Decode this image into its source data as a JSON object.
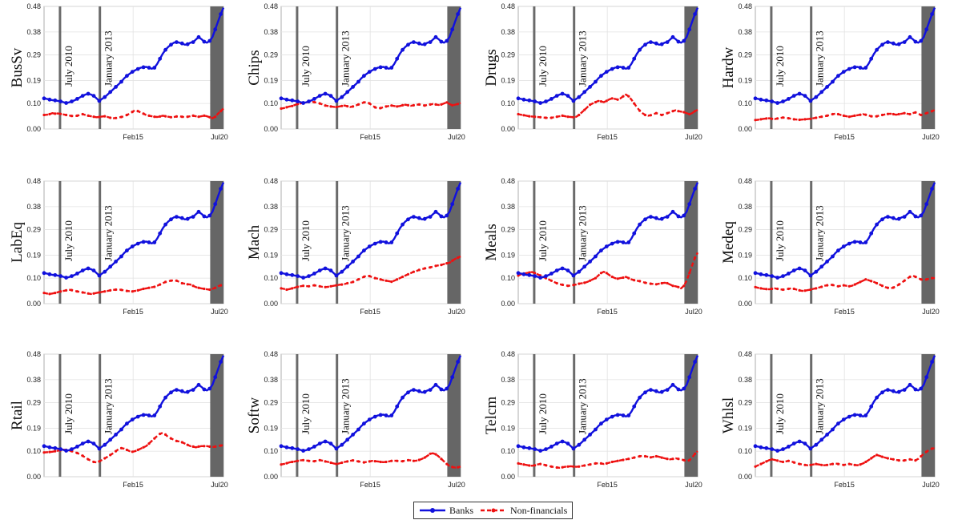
{
  "panels": [
    {
      "label": "BusSv",
      "nonfin": [
        0.055,
        0.056,
        0.058,
        0.062,
        0.06,
        0.061,
        0.059,
        0.057,
        0.055,
        0.053,
        0.051,
        0.05,
        0.052,
        0.055,
        0.058,
        0.055,
        0.052,
        0.05,
        0.048,
        0.046,
        0.047,
        0.049,
        0.05,
        0.047,
        0.044,
        0.042,
        0.043,
        0.045,
        0.047,
        0.05,
        0.055,
        0.06,
        0.067,
        0.074,
        0.07,
        0.065,
        0.06,
        0.055,
        0.052,
        0.05,
        0.048,
        0.047,
        0.049,
        0.052,
        0.05,
        0.048,
        0.046,
        0.047,
        0.049,
        0.05,
        0.048,
        0.046,
        0.048,
        0.05,
        0.052,
        0.05,
        0.048,
        0.05,
        0.052,
        0.05,
        0.046,
        0.042,
        0.048,
        0.06,
        0.07,
        0.08
      ]
    },
    {
      "label": "Chips",
      "nonfin": [
        0.08,
        0.082,
        0.085,
        0.088,
        0.09,
        0.094,
        0.098,
        0.1,
        0.102,
        0.104,
        0.106,
        0.107,
        0.105,
        0.103,
        0.1,
        0.096,
        0.092,
        0.09,
        0.088,
        0.087,
        0.086,
        0.088,
        0.09,
        0.092,
        0.089,
        0.086,
        0.088,
        0.092,
        0.096,
        0.1,
        0.104,
        0.106,
        0.1,
        0.092,
        0.085,
        0.08,
        0.082,
        0.085,
        0.088,
        0.09,
        0.092,
        0.09,
        0.088,
        0.09,
        0.093,
        0.095,
        0.093,
        0.091,
        0.093,
        0.095,
        0.096,
        0.094,
        0.092,
        0.094,
        0.096,
        0.098,
        0.096,
        0.094,
        0.096,
        0.1,
        0.104,
        0.098,
        0.093,
        0.095,
        0.098,
        0.102
      ]
    },
    {
      "label": "Drugs",
      "nonfin": [
        0.058,
        0.056,
        0.054,
        0.052,
        0.05,
        0.049,
        0.048,
        0.047,
        0.046,
        0.045,
        0.044,
        0.043,
        0.044,
        0.046,
        0.048,
        0.05,
        0.052,
        0.05,
        0.048,
        0.047,
        0.046,
        0.048,
        0.055,
        0.065,
        0.075,
        0.085,
        0.095,
        0.1,
        0.105,
        0.11,
        0.108,
        0.105,
        0.11,
        0.116,
        0.12,
        0.118,
        0.115,
        0.12,
        0.128,
        0.135,
        0.128,
        0.115,
        0.1,
        0.085,
        0.072,
        0.062,
        0.055,
        0.052,
        0.054,
        0.058,
        0.062,
        0.058,
        0.055,
        0.058,
        0.062,
        0.066,
        0.07,
        0.073,
        0.07,
        0.068,
        0.066,
        0.062,
        0.058,
        0.062,
        0.07,
        0.075
      ]
    },
    {
      "label": "Hardw",
      "nonfin": [
        0.035,
        0.036,
        0.038,
        0.04,
        0.041,
        0.042,
        0.04,
        0.039,
        0.041,
        0.043,
        0.045,
        0.044,
        0.042,
        0.04,
        0.038,
        0.037,
        0.036,
        0.037,
        0.038,
        0.039,
        0.04,
        0.042,
        0.044,
        0.046,
        0.048,
        0.05,
        0.052,
        0.055,
        0.058,
        0.06,
        0.058,
        0.055,
        0.052,
        0.05,
        0.048,
        0.05,
        0.052,
        0.054,
        0.056,
        0.058,
        0.056,
        0.053,
        0.05,
        0.048,
        0.05,
        0.053,
        0.055,
        0.057,
        0.059,
        0.06,
        0.058,
        0.056,
        0.058,
        0.06,
        0.062,
        0.06,
        0.058,
        0.062,
        0.065,
        0.06,
        0.055,
        0.058,
        0.062,
        0.066,
        0.07,
        0.074
      ]
    },
    {
      "label": "LabEq",
      "nonfin": [
        0.042,
        0.04,
        0.038,
        0.04,
        0.042,
        0.045,
        0.048,
        0.05,
        0.052,
        0.055,
        0.053,
        0.05,
        0.048,
        0.046,
        0.044,
        0.042,
        0.04,
        0.038,
        0.04,
        0.042,
        0.044,
        0.046,
        0.048,
        0.05,
        0.052,
        0.054,
        0.055,
        0.056,
        0.054,
        0.052,
        0.05,
        0.049,
        0.048,
        0.05,
        0.052,
        0.055,
        0.058,
        0.06,
        0.062,
        0.064,
        0.066,
        0.07,
        0.075,
        0.08,
        0.085,
        0.088,
        0.09,
        0.092,
        0.09,
        0.085,
        0.08,
        0.078,
        0.076,
        0.075,
        0.07,
        0.065,
        0.062,
        0.06,
        0.058,
        0.056,
        0.055,
        0.058,
        0.062,
        0.068,
        0.072,
        0.075
      ]
    },
    {
      "label": "Mach",
      "nonfin": [
        0.06,
        0.058,
        0.055,
        0.057,
        0.06,
        0.063,
        0.066,
        0.068,
        0.07,
        0.069,
        0.068,
        0.07,
        0.072,
        0.07,
        0.068,
        0.066,
        0.065,
        0.066,
        0.068,
        0.07,
        0.072,
        0.074,
        0.075,
        0.077,
        0.08,
        0.082,
        0.085,
        0.09,
        0.095,
        0.1,
        0.105,
        0.11,
        0.108,
        0.104,
        0.1,
        0.098,
        0.095,
        0.092,
        0.09,
        0.088,
        0.086,
        0.09,
        0.095,
        0.1,
        0.105,
        0.11,
        0.115,
        0.12,
        0.125,
        0.128,
        0.132,
        0.135,
        0.138,
        0.14,
        0.142,
        0.145,
        0.148,
        0.15,
        0.152,
        0.155,
        0.158,
        0.16,
        0.168,
        0.175,
        0.18,
        0.185
      ]
    },
    {
      "label": "Meals",
      "nonfin": [
        0.11,
        0.115,
        0.118,
        0.12,
        0.122,
        0.124,
        0.12,
        0.115,
        0.11,
        0.105,
        0.1,
        0.095,
        0.09,
        0.085,
        0.08,
        0.076,
        0.074,
        0.072,
        0.07,
        0.071,
        0.073,
        0.075,
        0.078,
        0.08,
        0.082,
        0.085,
        0.09,
        0.095,
        0.1,
        0.11,
        0.12,
        0.125,
        0.12,
        0.112,
        0.105,
        0.1,
        0.098,
        0.1,
        0.102,
        0.105,
        0.1,
        0.095,
        0.092,
        0.09,
        0.088,
        0.085,
        0.082,
        0.08,
        0.078,
        0.077,
        0.076,
        0.078,
        0.08,
        0.082,
        0.08,
        0.075,
        0.07,
        0.068,
        0.065,
        0.06,
        0.07,
        0.09,
        0.12,
        0.15,
        0.18,
        0.2
      ]
    },
    {
      "label": "Medeq",
      "nonfin": [
        0.065,
        0.062,
        0.06,
        0.058,
        0.057,
        0.056,
        0.058,
        0.06,
        0.058,
        0.056,
        0.055,
        0.056,
        0.058,
        0.06,
        0.058,
        0.055,
        0.052,
        0.05,
        0.051,
        0.053,
        0.055,
        0.058,
        0.06,
        0.063,
        0.066,
        0.07,
        0.072,
        0.075,
        0.073,
        0.07,
        0.068,
        0.07,
        0.072,
        0.07,
        0.068,
        0.07,
        0.075,
        0.08,
        0.085,
        0.09,
        0.095,
        0.092,
        0.088,
        0.085,
        0.08,
        0.075,
        0.07,
        0.065,
        0.062,
        0.06,
        0.063,
        0.068,
        0.075,
        0.082,
        0.09,
        0.098,
        0.105,
        0.11,
        0.105,
        0.1,
        0.095,
        0.092,
        0.095,
        0.098,
        0.1,
        0.1
      ]
    },
    {
      "label": "Rtail",
      "nonfin": [
        0.095,
        0.096,
        0.097,
        0.098,
        0.1,
        0.102,
        0.104,
        0.106,
        0.105,
        0.103,
        0.1,
        0.097,
        0.093,
        0.088,
        0.082,
        0.075,
        0.068,
        0.062,
        0.058,
        0.056,
        0.06,
        0.066,
        0.072,
        0.078,
        0.085,
        0.092,
        0.1,
        0.108,
        0.112,
        0.11,
        0.105,
        0.1,
        0.098,
        0.1,
        0.105,
        0.11,
        0.115,
        0.12,
        0.13,
        0.14,
        0.15,
        0.16,
        0.168,
        0.172,
        0.165,
        0.155,
        0.15,
        0.145,
        0.14,
        0.138,
        0.135,
        0.13,
        0.125,
        0.12,
        0.118,
        0.115,
        0.118,
        0.12,
        0.12,
        0.12,
        0.118,
        0.116,
        0.118,
        0.12,
        0.122,
        0.124
      ]
    },
    {
      "label": "Softw",
      "nonfin": [
        0.048,
        0.05,
        0.053,
        0.056,
        0.058,
        0.06,
        0.062,
        0.064,
        0.065,
        0.064,
        0.062,
        0.06,
        0.061,
        0.063,
        0.065,
        0.063,
        0.06,
        0.058,
        0.055,
        0.052,
        0.05,
        0.052,
        0.055,
        0.058,
        0.06,
        0.062,
        0.064,
        0.062,
        0.06,
        0.058,
        0.056,
        0.058,
        0.06,
        0.062,
        0.061,
        0.06,
        0.058,
        0.057,
        0.058,
        0.06,
        0.062,
        0.063,
        0.062,
        0.06,
        0.061,
        0.063,
        0.065,
        0.064,
        0.062,
        0.063,
        0.066,
        0.07,
        0.075,
        0.082,
        0.09,
        0.092,
        0.088,
        0.08,
        0.07,
        0.06,
        0.05,
        0.042,
        0.038,
        0.036,
        0.037,
        0.04
      ]
    },
    {
      "label": "Telcm",
      "nonfin": [
        0.052,
        0.05,
        0.048,
        0.046,
        0.044,
        0.043,
        0.045,
        0.048,
        0.05,
        0.048,
        0.045,
        0.042,
        0.04,
        0.038,
        0.036,
        0.035,
        0.037,
        0.039,
        0.04,
        0.041,
        0.04,
        0.039,
        0.04,
        0.042,
        0.044,
        0.046,
        0.048,
        0.05,
        0.052,
        0.053,
        0.052,
        0.05,
        0.052,
        0.055,
        0.058,
        0.06,
        0.062,
        0.064,
        0.066,
        0.068,
        0.07,
        0.072,
        0.075,
        0.078,
        0.08,
        0.082,
        0.08,
        0.078,
        0.076,
        0.078,
        0.08,
        0.078,
        0.075,
        0.072,
        0.07,
        0.068,
        0.07,
        0.072,
        0.07,
        0.068,
        0.065,
        0.06,
        0.065,
        0.075,
        0.09,
        0.1
      ]
    },
    {
      "label": "Whlsl",
      "nonfin": [
        0.04,
        0.045,
        0.05,
        0.055,
        0.06,
        0.065,
        0.068,
        0.066,
        0.063,
        0.06,
        0.058,
        0.06,
        0.062,
        0.06,
        0.056,
        0.052,
        0.05,
        0.048,
        0.046,
        0.045,
        0.046,
        0.048,
        0.05,
        0.048,
        0.046,
        0.045,
        0.046,
        0.048,
        0.05,
        0.052,
        0.05,
        0.048,
        0.046,
        0.048,
        0.05,
        0.048,
        0.046,
        0.045,
        0.048,
        0.052,
        0.058,
        0.065,
        0.072,
        0.08,
        0.085,
        0.082,
        0.078,
        0.075,
        0.072,
        0.07,
        0.068,
        0.066,
        0.064,
        0.062,
        0.064,
        0.066,
        0.068,
        0.066,
        0.064,
        0.07,
        0.08,
        0.09,
        0.098,
        0.105,
        0.11,
        0.112
      ]
    }
  ],
  "legend": [
    {
      "label": "Banks",
      "color": "#1111dd"
    },
    {
      "label": "Non-financials",
      "color": "#ee1111"
    }
  ],
  "chart_data": {
    "type": "line",
    "layout": "3x4 small multiples",
    "x_start": "2009-07",
    "x_end": "2020-10",
    "xticks": [
      "Feb15",
      "Jul20"
    ],
    "yticks": [
      "0.00",
      "0.10",
      "0.19",
      "0.29",
      "0.38",
      "0.48"
    ],
    "ylim": [
      0,
      0.48
    ],
    "grid": true,
    "vlines": [
      {
        "label": "July 2010"
      },
      {
        "label": "January 2013"
      }
    ],
    "shaded_region": {
      "from": "2019-12",
      "to": "2020-10",
      "color": "#666666"
    },
    "banks_series": [
      0.12,
      0.118,
      0.115,
      0.113,
      0.112,
      0.11,
      0.108,
      0.105,
      0.102,
      0.104,
      0.108,
      0.112,
      0.118,
      0.124,
      0.13,
      0.135,
      0.138,
      0.135,
      0.13,
      0.12,
      0.11,
      0.118,
      0.125,
      0.135,
      0.145,
      0.155,
      0.165,
      0.175,
      0.185,
      0.198,
      0.208,
      0.216,
      0.224,
      0.23,
      0.235,
      0.24,
      0.242,
      0.243,
      0.24,
      0.236,
      0.24,
      0.255,
      0.275,
      0.295,
      0.31,
      0.322,
      0.33,
      0.338,
      0.34,
      0.338,
      0.335,
      0.33,
      0.332,
      0.338,
      0.34,
      0.35,
      0.36,
      0.352,
      0.342,
      0.338,
      0.345,
      0.36,
      0.39,
      0.42,
      0.45,
      0.475
    ],
    "series_names": [
      "Banks",
      "Non-financials"
    ],
    "panels": [
      "BusSv",
      "Chips",
      "Drugs",
      "Hardw",
      "LabEq",
      "Mach",
      "Meals",
      "Medeq",
      "Rtail",
      "Softw",
      "Telcm",
      "Whlsl"
    ]
  }
}
